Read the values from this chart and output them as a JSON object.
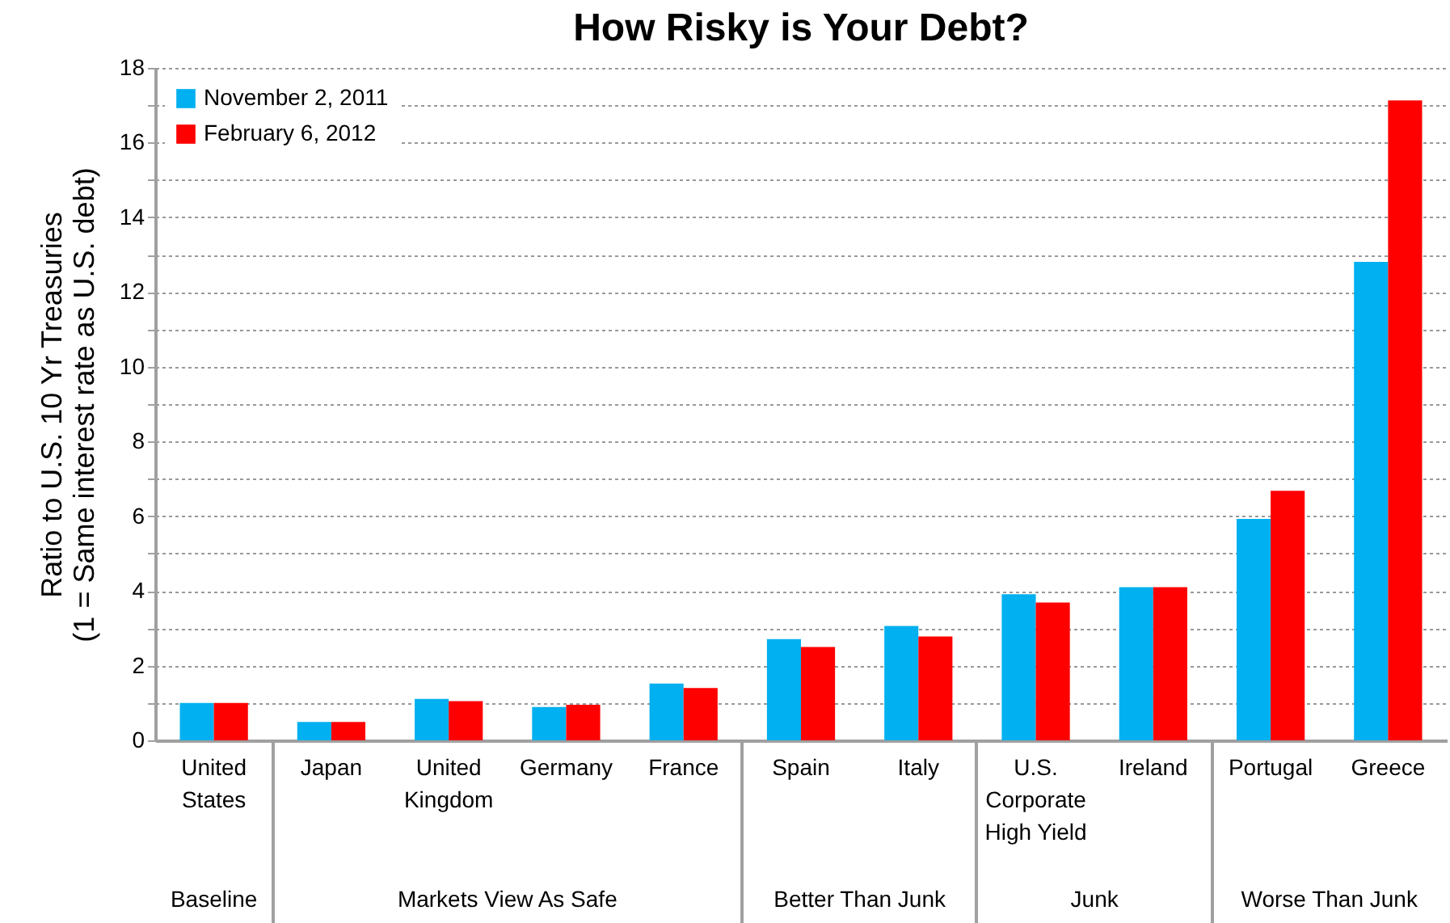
{
  "chart_data": {
    "type": "bar",
    "title": "How Risky is Your Debt?",
    "ylabel": "Ratio to U.S. 10 Yr Treasuries (1 = Same interest rate as U.S. debt)",
    "categories": [
      "United States",
      "Japan",
      "United Kingdom",
      "Germany",
      "France",
      "Spain",
      "Italy",
      "U.S. Corporate High Yield",
      "Ireland",
      "Portugal",
      "Greece"
    ],
    "series": [
      {
        "name": "November 2, 2011",
        "color": "#00b0f0",
        "values": [
          1.0,
          0.49,
          1.11,
          0.89,
          1.52,
          2.71,
          3.06,
          3.91,
          4.1,
          5.93,
          12.81
        ]
      },
      {
        "name": "February 6, 2012",
        "color": "#ff0000",
        "values": [
          1.0,
          0.49,
          1.05,
          0.95,
          1.4,
          2.5,
          2.78,
          3.69,
          4.1,
          6.68,
          17.13
        ]
      }
    ],
    "ylim": [
      0,
      18
    ],
    "yticks": [
      0,
      {
        "value": 1,
        "label": null
      },
      2,
      {
        "value": 3,
        "label": null
      },
      4,
      {
        "value": 5,
        "label": null
      },
      6,
      {
        "value": 7,
        "label": null
      },
      8,
      {
        "value": 9,
        "label": null
      },
      10,
      {
        "value": 11,
        "label": null
      },
      12,
      {
        "value": 13,
        "label": null
      },
      14,
      {
        "value": 15,
        "label": null
      },
      16,
      {
        "value": 17,
        "label": null
      },
      18
    ],
    "grid": true,
    "legend": "top left",
    "annotations": [
      "Baseline",
      "Markets View As Safe",
      "Better Than Junk",
      "Junk",
      "Worse Than Junk"
    ]
  }
}
